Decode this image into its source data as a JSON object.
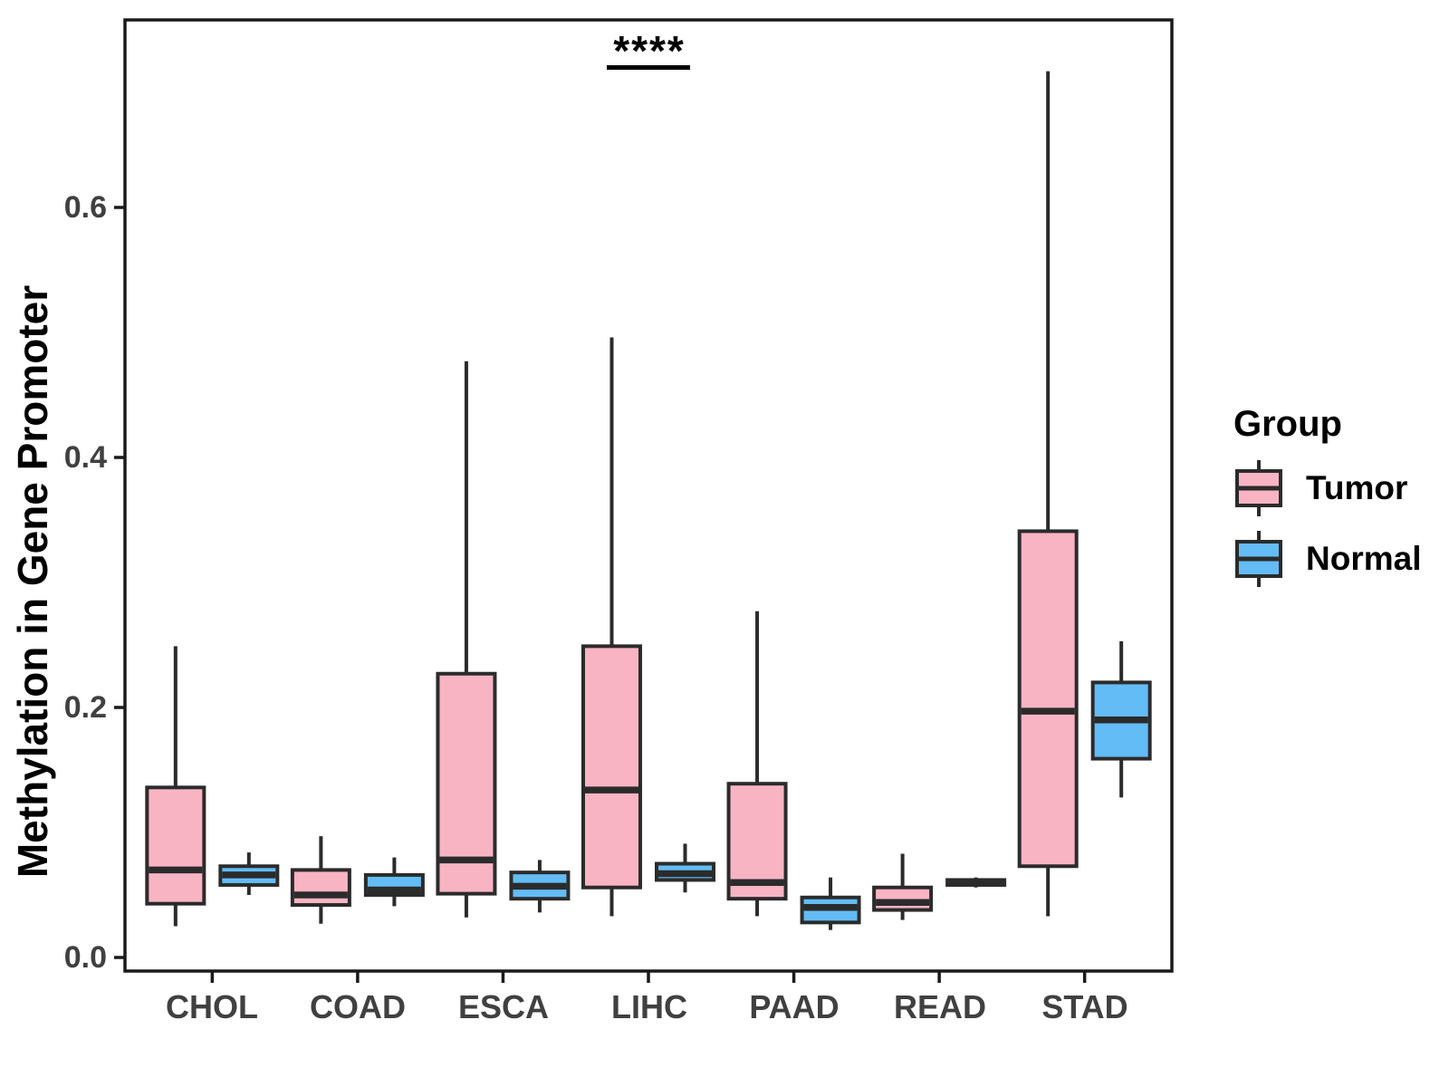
{
  "figure": {
    "background": "#ffffff"
  },
  "chart_data": {
    "type": "boxplot",
    "title": "",
    "xlabel": "",
    "ylabel": "Methylation in Gene Promoter",
    "categories": [
      "CHOL",
      "COAD",
      "ESCA",
      "LIHC",
      "PAAD",
      "READ",
      "STAD"
    ],
    "ytick_labels": [
      "0.0",
      "0.2",
      "0.4",
      "0.6"
    ],
    "yticks": [
      0.0,
      0.2,
      0.4,
      0.6
    ],
    "ylim": [
      -0.011,
      0.75
    ],
    "grid": "off",
    "legend_title": "Group",
    "legend_position": "right",
    "series": [
      {
        "name": "Tumor",
        "color": "#F9B4C4",
        "boxes": [
          {
            "category": "CHOL",
            "low": 0.025,
            "q1": 0.043,
            "median": 0.07,
            "q3": 0.136,
            "high": 0.249
          },
          {
            "category": "COAD",
            "low": 0.027,
            "q1": 0.042,
            "median": 0.05,
            "q3": 0.07,
            "high": 0.097
          },
          {
            "category": "ESCA",
            "low": 0.032,
            "q1": 0.051,
            "median": 0.078,
            "q3": 0.227,
            "high": 0.477
          },
          {
            "category": "LIHC",
            "low": 0.033,
            "q1": 0.056,
            "median": 0.134,
            "q3": 0.249,
            "high": 0.496
          },
          {
            "category": "PAAD",
            "low": 0.033,
            "q1": 0.047,
            "median": 0.06,
            "q3": 0.139,
            "high": 0.277
          },
          {
            "category": "READ",
            "low": 0.03,
            "q1": 0.038,
            "median": 0.044,
            "q3": 0.056,
            "high": 0.083
          },
          {
            "category": "STAD",
            "low": 0.033,
            "q1": 0.073,
            "median": 0.197,
            "q3": 0.341,
            "high": 0.709
          }
        ]
      },
      {
        "name": "Normal",
        "color": "#63BCF5",
        "boxes": [
          {
            "category": "CHOL",
            "low": 0.05,
            "q1": 0.058,
            "median": 0.066,
            "q3": 0.073,
            "high": 0.084
          },
          {
            "category": "COAD",
            "low": 0.041,
            "q1": 0.05,
            "median": 0.054,
            "q3": 0.066,
            "high": 0.08
          },
          {
            "category": "ESCA",
            "low": 0.036,
            "q1": 0.047,
            "median": 0.057,
            "q3": 0.068,
            "high": 0.078
          },
          {
            "category": "LIHC",
            "low": 0.052,
            "q1": 0.062,
            "median": 0.067,
            "q3": 0.075,
            "high": 0.091
          },
          {
            "category": "PAAD",
            "low": 0.022,
            "q1": 0.028,
            "median": 0.04,
            "q3": 0.048,
            "high": 0.064
          },
          {
            "category": "READ",
            "low": 0.056,
            "q1": 0.058,
            "median": 0.06,
            "q3": 0.062,
            "high": 0.064
          },
          {
            "category": "STAD",
            "low": 0.128,
            "q1": 0.159,
            "median": 0.19,
            "q3": 0.22,
            "high": 0.253
          }
        ]
      }
    ],
    "annotation": {
      "text": "****",
      "category": "LIHC",
      "bar_y": 0.712
    },
    "colors": {
      "box_stroke": "#2b2b2b",
      "panel_border": "#1a1a1a",
      "axis_text": "#404040",
      "annotation": "#000000"
    }
  }
}
